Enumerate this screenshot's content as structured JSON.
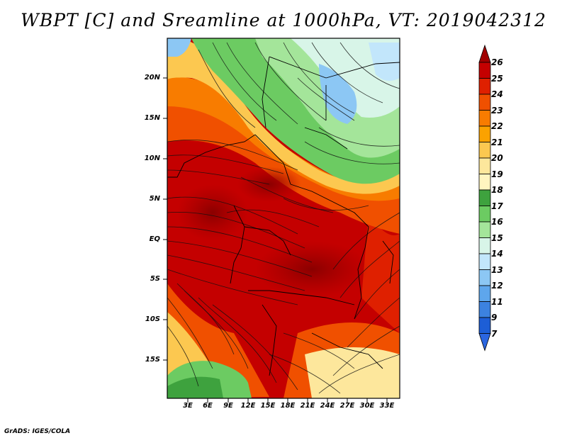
{
  "title": "WBPT [C] and Sreamline at 1000hPa, VT: 2019042312",
  "credit": "GrADS: IGES/COLA",
  "axes": {
    "lat_labels": [
      "20N",
      "15N",
      "10N",
      "5N",
      "EQ",
      "5S",
      "10S",
      "15S"
    ],
    "lon_labels": [
      "3E",
      "6E",
      "9E",
      "12E",
      "15E",
      "18E",
      "21E",
      "24E",
      "27E",
      "30E",
      "33E"
    ]
  },
  "colorbar": {
    "labels": [
      "26",
      "25",
      "24",
      "23",
      "22",
      "21",
      "20",
      "19",
      "18",
      "17",
      "16",
      "15",
      "14",
      "13",
      "12",
      "11",
      "9",
      "7"
    ],
    "colors": [
      "#a10000",
      "#c40000",
      "#df2000",
      "#f05000",
      "#f87c00",
      "#fba200",
      "#fcc850",
      "#fde79c",
      "#fff5c0",
      "#3ea23e",
      "#6ccb62",
      "#a4e59a",
      "#d8f5e8",
      "#c2e6fb",
      "#8cc7f4",
      "#5ea6ec",
      "#3c82e0",
      "#1d5ed6",
      "#2b66e0"
    ]
  }
}
